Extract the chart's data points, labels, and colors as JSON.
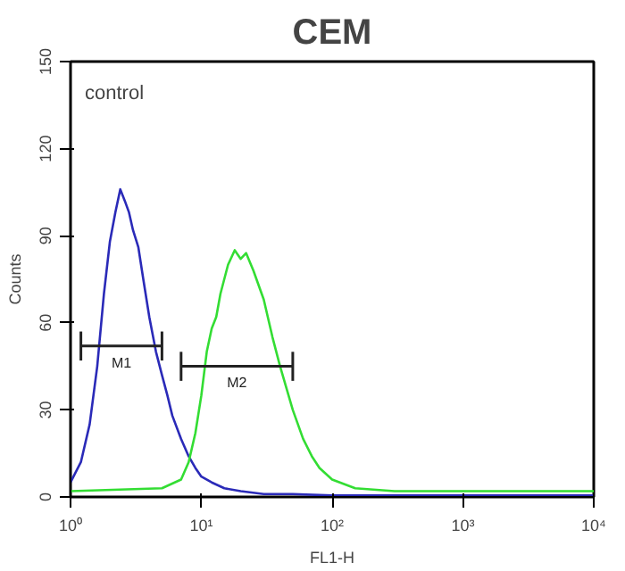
{
  "chart_data": {
    "type": "line",
    "title": "CEM",
    "xlabel": "FL1-H",
    "ylabel": "Counts",
    "log": "x",
    "grid": false,
    "xlim": [
      1,
      10000
    ],
    "xticks": [
      {
        "value": 1,
        "label": "10⁰"
      },
      {
        "value": 10,
        "label": "10¹"
      },
      {
        "value": 100,
        "label": "10²"
      },
      {
        "value": 1000,
        "label": "10³"
      },
      {
        "value": 10000,
        "label": "10⁴"
      }
    ],
    "ylim": [
      0,
      150
    ],
    "yticks": [
      0,
      30,
      60,
      90,
      120,
      150
    ],
    "annotations": [
      "control"
    ],
    "series": [
      {
        "color": "#2a2ab8",
        "x": [
          1,
          1.2,
          1.4,
          1.6,
          1.8,
          2.0,
          2.2,
          2.4,
          2.6,
          2.8,
          3.0,
          3.3,
          3.6,
          4.0,
          4.5,
          5,
          5.5,
          6,
          7,
          8,
          9,
          10,
          12,
          15,
          20,
          30,
          50,
          100,
          1000,
          10000
        ],
        "values": [
          5,
          12,
          25,
          45,
          70,
          88,
          98,
          106,
          102,
          98,
          92,
          86,
          75,
          62,
          50,
          42,
          35,
          28,
          20,
          14,
          10,
          7,
          5,
          3,
          2,
          1,
          1,
          0.5,
          0.5,
          0.5
        ]
      },
      {
        "color": "#33dd33",
        "x": [
          1,
          5,
          7,
          8,
          9,
          10,
          11,
          12,
          13,
          14,
          16,
          18,
          20,
          22,
          25,
          30,
          35,
          40,
          50,
          60,
          70,
          80,
          100,
          150,
          300,
          1000,
          10000
        ],
        "values": [
          2,
          3,
          6,
          12,
          22,
          35,
          50,
          58,
          62,
          70,
          80,
          85,
          82,
          84,
          78,
          68,
          55,
          45,
          30,
          20,
          14,
          10,
          6,
          3,
          2,
          2,
          2
        ]
      },
      {
        "name": "M1",
        "color": "#222222",
        "x": [
          1.2,
          5
        ],
        "values": [
          52,
          52
        ],
        "errors": [
          5,
          5
        ]
      },
      {
        "name": "M2",
        "color": "#222222",
        "x": [
          7,
          50
        ],
        "values": [
          45,
          45
        ],
        "errors": [
          5,
          5
        ]
      }
    ]
  }
}
